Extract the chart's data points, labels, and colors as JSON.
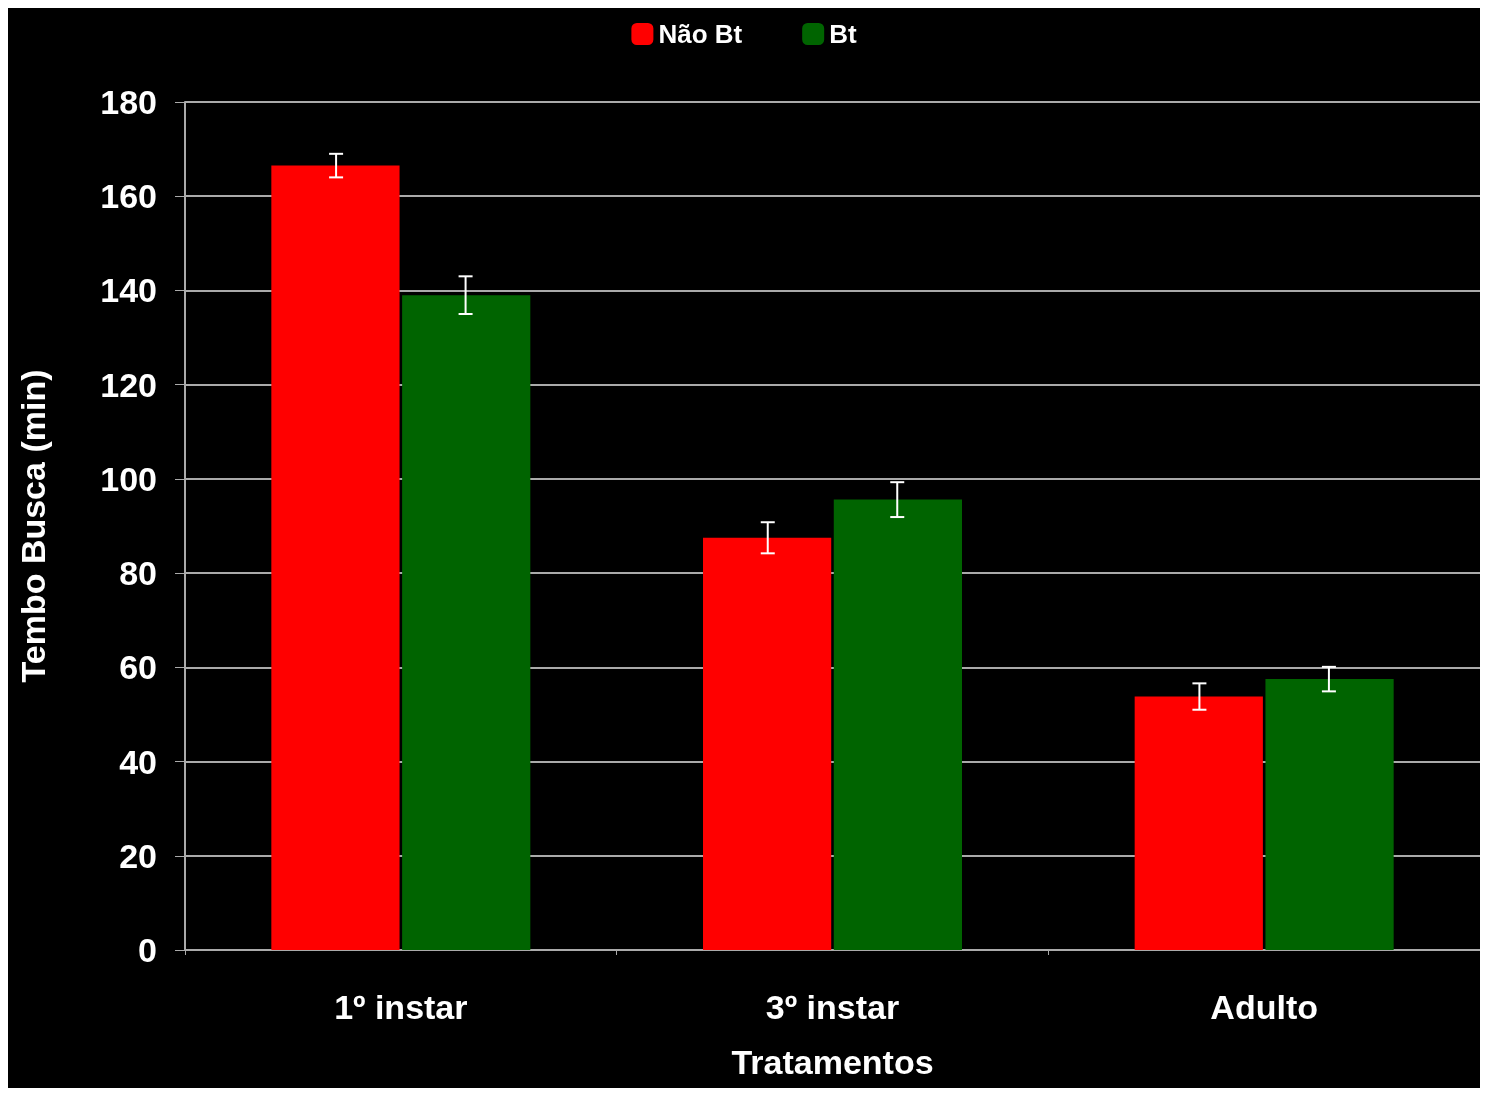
{
  "chart_data": {
    "type": "bar",
    "xlabel": "Tratamentos",
    "ylabel": "Tembo Busca (min)",
    "categories": [
      "1º instar",
      "3º instar",
      "Adulto"
    ],
    "series": [
      {
        "name": "Não Bt",
        "color": "#ff0000",
        "values": [
          166.5,
          87.5,
          53.8
        ],
        "errors": [
          2.5,
          3.3,
          2.8
        ]
      },
      {
        "name": "Bt",
        "color": "#006400",
        "values": [
          139,
          95.6,
          57.5
        ],
        "errors": [
          4,
          3.7,
          2.6
        ]
      }
    ],
    "ylim": [
      0,
      180
    ],
    "yticks": [
      0,
      20,
      40,
      60,
      80,
      100,
      120,
      140,
      160,
      180
    ],
    "grid": "y",
    "legend": "top"
  }
}
